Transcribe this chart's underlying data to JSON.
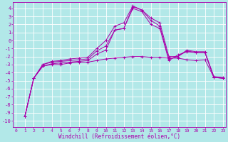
{
  "xlabel": "Windchill (Refroidissement éolien,°C)",
  "background_color": "#b2e8e8",
  "grid_color": "#ffffff",
  "line_color": "#aa00aa",
  "x_ticks": [
    0,
    1,
    2,
    3,
    4,
    5,
    6,
    7,
    8,
    9,
    10,
    11,
    12,
    13,
    14,
    15,
    16,
    17,
    18,
    19,
    20,
    21,
    22,
    23
  ],
  "y_ticks": [
    -10,
    -9,
    -8,
    -7,
    -6,
    -5,
    -4,
    -3,
    -2,
    -1,
    0,
    1,
    2,
    3,
    4
  ],
  "xlim": [
    -0.3,
    23.3
  ],
  "ylim": [
    -10.8,
    4.8
  ],
  "series": [
    [
      null,
      -9.5,
      -4.7,
      -3.2,
      -3.0,
      -3.0,
      -2.8,
      -2.7,
      -2.7,
      -2.5,
      -2.3,
      -2.2,
      -2.1,
      -2.0,
      -2.0,
      -2.1,
      -2.1,
      -2.2,
      -2.2,
      -2.4,
      -2.5,
      -2.4,
      -4.6,
      -4.7
    ],
    [
      null,
      -9.5,
      -4.7,
      -3.2,
      -2.9,
      -2.8,
      -2.7,
      -2.6,
      -2.5,
      -1.7,
      -1.2,
      1.3,
      1.5,
      4.0,
      3.6,
      2.0,
      1.5,
      -2.5,
      -1.8,
      -1.4,
      -1.5,
      -1.5,
      -4.6,
      -4.7
    ],
    [
      null,
      -9.5,
      -4.7,
      -3.0,
      -2.7,
      -2.6,
      -2.5,
      -2.4,
      -2.3,
      -1.3,
      -0.7,
      1.3,
      1.5,
      4.2,
      3.8,
      2.5,
      1.8,
      -2.3,
      -2.0,
      -1.3,
      -1.5,
      -1.5,
      -4.6,
      -4.7
    ],
    [
      null,
      -9.5,
      -4.7,
      -3.0,
      -2.6,
      -2.5,
      -2.3,
      -2.2,
      -2.1,
      -1.0,
      0.0,
      1.8,
      2.2,
      4.3,
      3.8,
      2.8,
      2.2,
      -2.0,
      -2.0,
      -1.2,
      -1.4,
      -1.4,
      -4.5,
      -4.6
    ]
  ]
}
